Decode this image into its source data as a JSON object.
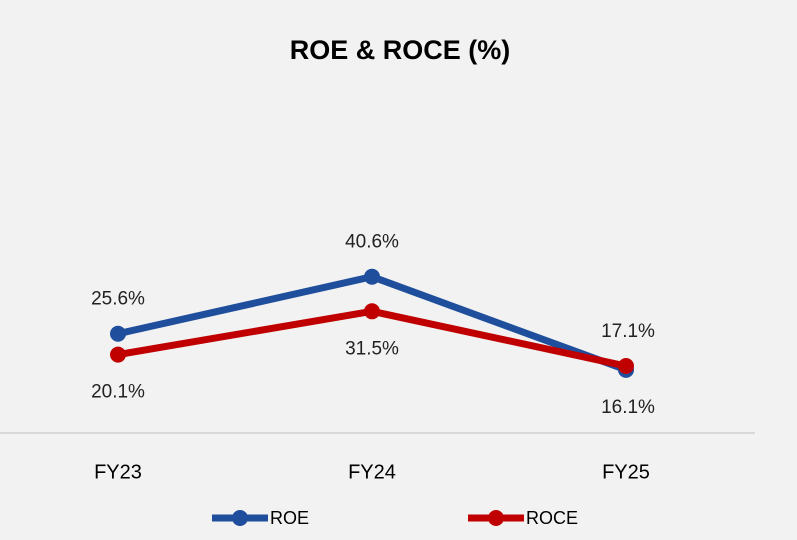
{
  "chart_data": {
    "type": "line",
    "title": "ROE & ROCE (%)",
    "categories": [
      "FY23",
      "FY24",
      "FY25"
    ],
    "series": [
      {
        "name": "ROE",
        "color": "#1f4e9c",
        "values": [
          25.6,
          40.6,
          16.1
        ],
        "value_labels": [
          "25.6%",
          "40.6%",
          "16.1%"
        ]
      },
      {
        "name": "ROCE",
        "color": "#c00000",
        "values": [
          20.1,
          31.5,
          17.1
        ],
        "value_labels": [
          "20.1%",
          "31.5%",
          "17.1%"
        ]
      }
    ],
    "ylim": [
      0,
      80
    ],
    "legend": "bottom"
  }
}
